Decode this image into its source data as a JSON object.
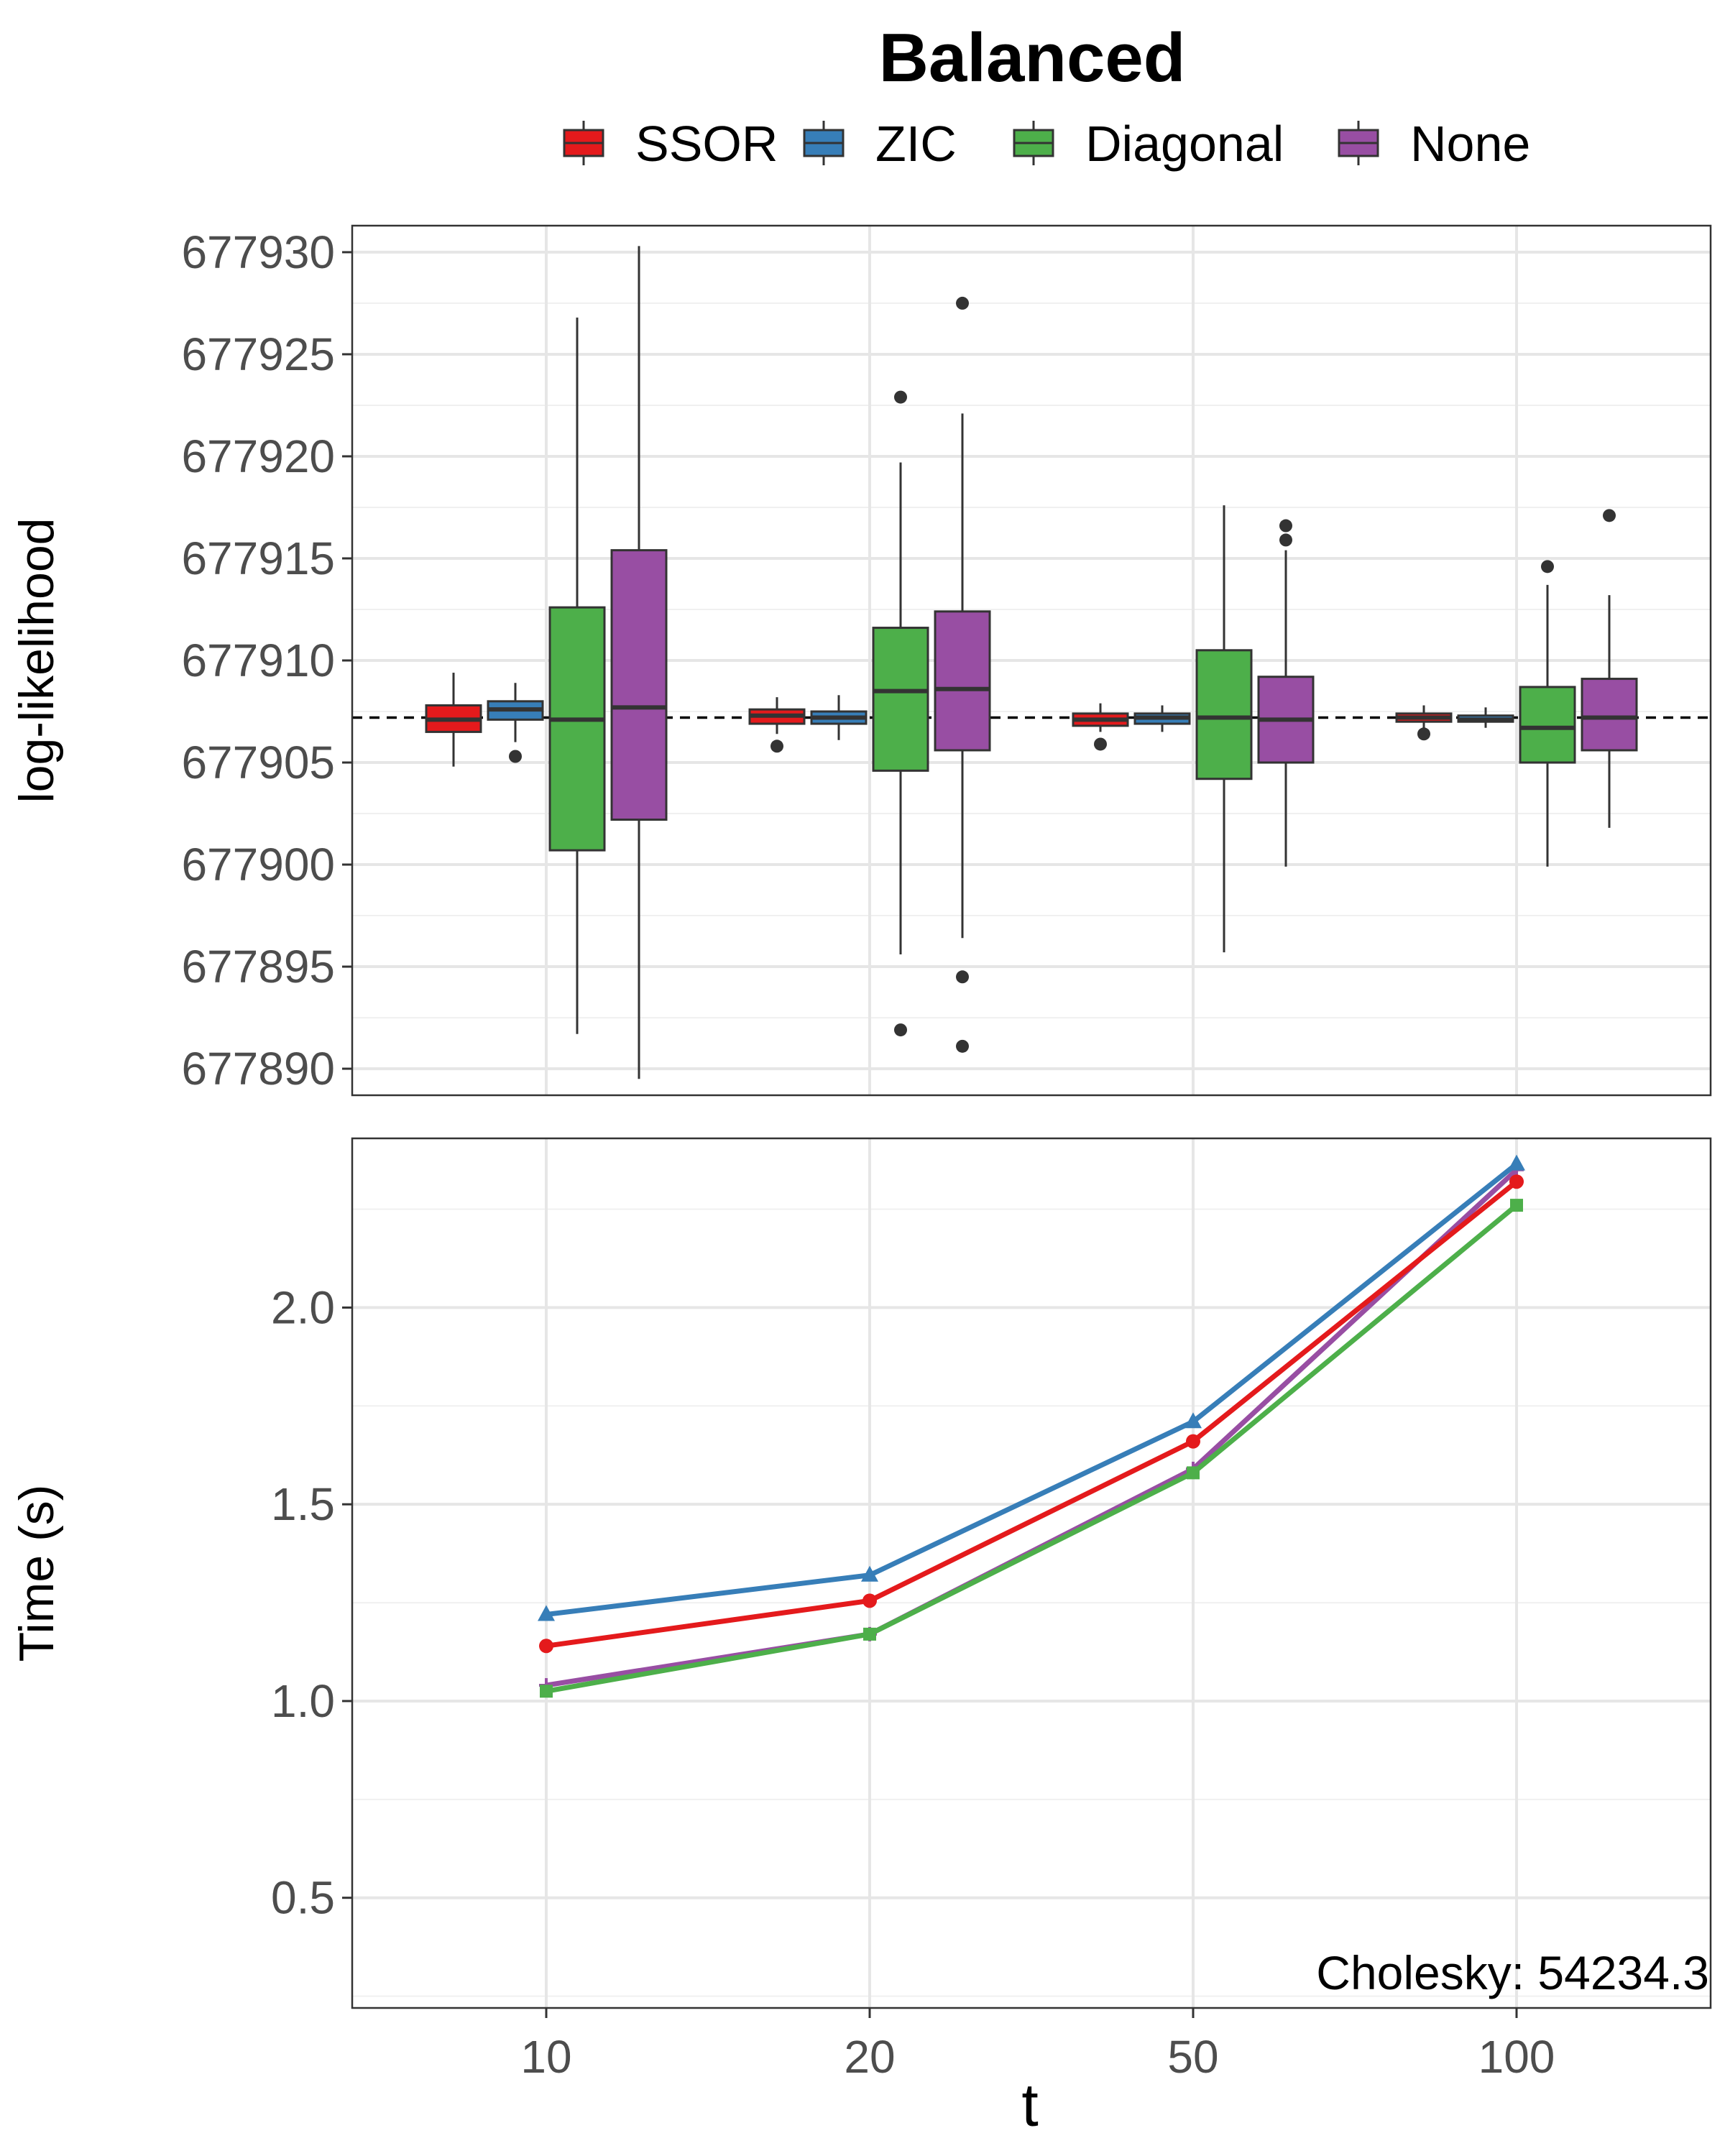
{
  "chart_data": {
    "title": "Balanced",
    "x_title": "t",
    "categories": [
      "10",
      "20",
      "50",
      "100"
    ],
    "legend": [
      {
        "name": "SSOR",
        "color": "#E41A1C"
      },
      {
        "name": "ZIC",
        "color": "#377EB8"
      },
      {
        "name": "Diagonal",
        "color": "#4DAF4A"
      },
      {
        "name": "None",
        "color": "#984EA3"
      }
    ],
    "panels": [
      {
        "type": "box",
        "ylabel": "log-likelihood",
        "ylim": [
          677888.7,
          677931.3
        ],
        "ticks": [
          677930,
          677925,
          677920,
          677915,
          677910,
          677905,
          677900,
          677895,
          677890
        ],
        "tick_labels": [
          "677930",
          "677925",
          "677920",
          "677915",
          "677910",
          "677905",
          "677900",
          "677895",
          "677890"
        ],
        "reference_line": 677907.2,
        "boxes": [
          {
            "t": "10",
            "series": "SSOR",
            "min": 677904.8,
            "q1": 677906.5,
            "median": 677907.1,
            "q3": 677907.8,
            "max": 677909.4,
            "outliers": []
          },
          {
            "t": "10",
            "series": "ZIC",
            "min": 677906.0,
            "q1": 677907.1,
            "median": 677907.6,
            "q3": 677908.0,
            "max": 677908.9,
            "outliers": [
              677905.3
            ]
          },
          {
            "t": "10",
            "series": "Diagonal",
            "min": 677891.7,
            "q1": 677900.7,
            "median": 677907.1,
            "q3": 677912.6,
            "max": 677926.8,
            "outliers": []
          },
          {
            "t": "10",
            "series": "None",
            "min": 677889.5,
            "q1": 677902.2,
            "median": 677907.7,
            "q3": 677915.4,
            "max": 677930.3,
            "outliers": []
          },
          {
            "t": "20",
            "series": "SSOR",
            "min": 677906.4,
            "q1": 677906.9,
            "median": 677907.3,
            "q3": 677907.6,
            "max": 677908.2,
            "outliers": [
              677905.8
            ]
          },
          {
            "t": "20",
            "series": "ZIC",
            "min": 677906.1,
            "q1": 677906.9,
            "median": 677907.2,
            "q3": 677907.5,
            "max": 677908.3,
            "outliers": []
          },
          {
            "t": "20",
            "series": "Diagonal",
            "min": 677895.6,
            "q1": 677904.6,
            "median": 677908.5,
            "q3": 677911.6,
            "max": 677919.7,
            "outliers": [
              677922.9,
              677891.9
            ]
          },
          {
            "t": "20",
            "series": "None",
            "min": 677896.4,
            "q1": 677905.6,
            "median": 677908.6,
            "q3": 677912.4,
            "max": 677922.1,
            "outliers": [
              677927.5,
              677894.5,
              677891.1
            ]
          },
          {
            "t": "50",
            "series": "SSOR",
            "min": 677906.5,
            "q1": 677906.8,
            "median": 677907.1,
            "q3": 677907.4,
            "max": 677907.9,
            "outliers": [
              677905.9
            ]
          },
          {
            "t": "50",
            "series": "ZIC",
            "min": 677906.5,
            "q1": 677906.9,
            "median": 677907.2,
            "q3": 677907.4,
            "max": 677907.8,
            "outliers": []
          },
          {
            "t": "50",
            "series": "Diagonal",
            "min": 677895.7,
            "q1": 677904.2,
            "median": 677907.2,
            "q3": 677910.5,
            "max": 677917.6,
            "outliers": []
          },
          {
            "t": "50",
            "series": "None",
            "min": 677899.9,
            "q1": 677905.0,
            "median": 677907.1,
            "q3": 677909.2,
            "max": 677915.4,
            "outliers": [
              677916.6,
              677915.9
            ]
          },
          {
            "t": "100",
            "series": "SSOR",
            "min": 677906.6,
            "q1": 677907.0,
            "median": 677907.2,
            "q3": 677907.4,
            "max": 677907.8,
            "outliers": [
              677906.4
            ]
          },
          {
            "t": "100",
            "series": "ZIC",
            "min": 677906.7,
            "q1": 677907.0,
            "median": 677907.1,
            "q3": 677907.3,
            "max": 677907.7,
            "outliers": []
          },
          {
            "t": "100",
            "series": "Diagonal",
            "min": 677899.9,
            "q1": 677905.0,
            "median": 677906.7,
            "q3": 677908.7,
            "max": 677913.7,
            "outliers": [
              677914.6
            ]
          },
          {
            "t": "100",
            "series": "None",
            "min": 677901.8,
            "q1": 677905.6,
            "median": 677907.2,
            "q3": 677909.1,
            "max": 677913.2,
            "outliers": [
              677917.1
            ]
          }
        ]
      },
      {
        "type": "line",
        "ylabel": "Time (s)",
        "ylim": [
          0.22,
          2.43
        ],
        "ticks": [
          2.0,
          1.5,
          1.0,
          0.5
        ],
        "tick_labels": [
          "2.0",
          "1.5",
          "1.0",
          "0.5"
        ],
        "annotation": "Cholesky: 54234.3",
        "series": [
          {
            "name": "None",
            "marker": "cross",
            "values": [
              1.04,
              1.17,
              1.59,
              2.35
            ]
          },
          {
            "name": "Diagonal",
            "marker": "square",
            "values": [
              1.025,
              1.17,
              1.58,
              2.26
            ]
          },
          {
            "name": "SSOR",
            "marker": "circle",
            "values": [
              1.14,
              1.255,
              1.66,
              2.32
            ]
          },
          {
            "name": "ZIC",
            "marker": "triangle",
            "values": [
              1.22,
              1.32,
              1.71,
              2.365
            ]
          }
        ]
      }
    ]
  }
}
